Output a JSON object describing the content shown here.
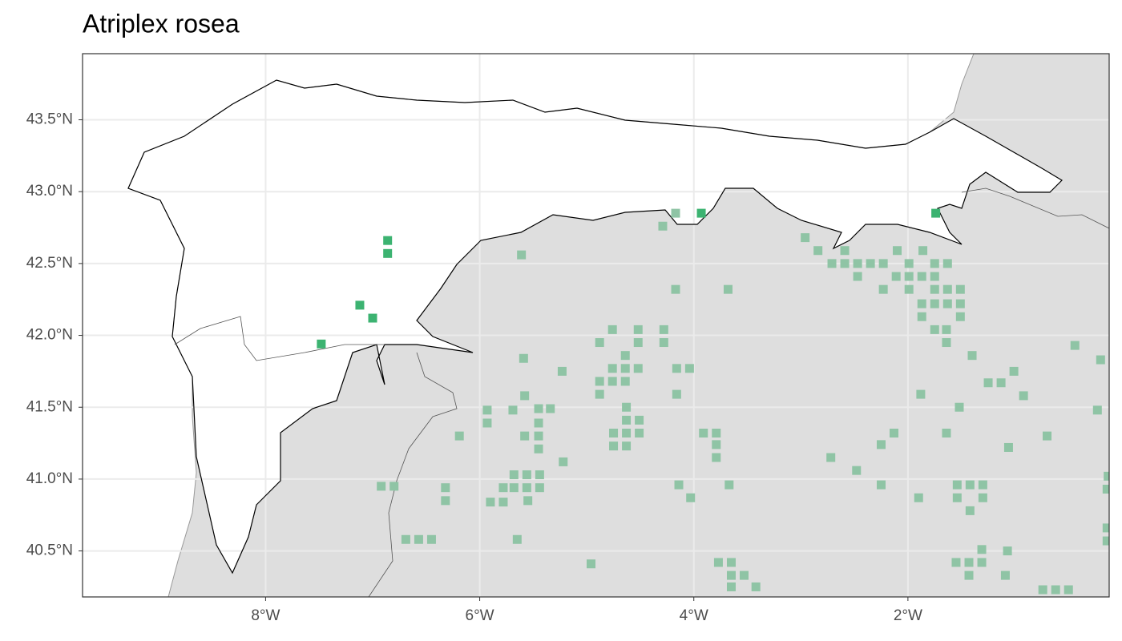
{
  "chart_data": {
    "type": "map",
    "title": "Atriplex rosea",
    "xlim": [
      -9.71,
      -0.12
    ],
    "ylim": [
      40.18,
      43.96
    ],
    "grid": true,
    "xticks": [
      {
        "value": -8,
        "label": "8°W"
      },
      {
        "value": -6,
        "label": "6°W"
      },
      {
        "value": -4,
        "label": "4°W"
      },
      {
        "value": -2,
        "label": "2°W"
      }
    ],
    "yticks": [
      {
        "value": 40.5,
        "label": "40.5°N"
      },
      {
        "value": 41,
        "label": "41.0°N"
      },
      {
        "value": 41.5,
        "label": "41.5°N"
      },
      {
        "value": 42,
        "label": "42.0°N"
      },
      {
        "value": 42.5,
        "label": "42.5°N"
      },
      {
        "value": 43,
        "label": "43.0°N"
      },
      {
        "value": 43.5,
        "label": "43.5°N"
      }
    ],
    "series": [
      {
        "color": "#8fc4a5",
        "x": [
          -4.17,
          -4.29,
          -2.96,
          -2.84,
          -2.59,
          -5.61,
          -2.71,
          -2.59,
          -2.47,
          -2.35,
          -2.23,
          -2.1,
          -1.99,
          -1.86,
          -1.75,
          -1.63,
          -2.47,
          -2.11,
          -1.99,
          -1.87,
          -1.75,
          -2.23,
          -1.99,
          -1.75,
          -1.63,
          -1.51,
          -4.17,
          -3.68,
          -1.87,
          -1.75,
          -1.63,
          -1.51,
          -1.87,
          -1.51,
          -4.76,
          -4.52,
          -4.28,
          -1.75,
          -1.64,
          -4.88,
          -4.52,
          -4.28,
          -1.64,
          -5.59,
          -4.64,
          -1.4,
          -4.76,
          -4.64,
          -4.52,
          -4.16,
          -4.04,
          -5.23,
          -4.88,
          -4.76,
          -4.64,
          -1.25,
          -1.01,
          -1.13,
          -0.44,
          -0.2,
          -4.88,
          -5.58,
          -4.16,
          -1.88,
          -0.92,
          -5.93,
          -5.69,
          -5.45,
          -5.34,
          -4.63,
          -1.52,
          -0.23,
          -5.93,
          -5.45,
          -4.63,
          -4.51,
          -5.58,
          -5.45,
          -4.75,
          -4.63,
          -4.51,
          -3.91,
          -3.79,
          -2.13,
          -1.64,
          -0.7,
          -6.19,
          -5.45,
          -4.75,
          -4.63,
          -3.79,
          -2.25,
          -1.06,
          -5.22,
          -3.79,
          -2.72,
          -2.48,
          -0.13,
          -6.92,
          -6.8,
          -6.32,
          -5.78,
          -5.68,
          -5.56,
          -5.44,
          -5.68,
          -5.56,
          -5.44,
          -4.14,
          -3.67,
          -2.25,
          -1.54,
          -1.42,
          -1.3,
          -0.14,
          -6.32,
          -5.9,
          -5.78,
          -5.55,
          -4.03,
          -1.9,
          -1.54,
          -1.3,
          -1.42,
          -6.69,
          -6.57,
          -6.45,
          -5.65,
          -0.14,
          -0.14,
          -4.96,
          -3.77,
          -3.65,
          -1.55,
          -1.43,
          -1.31,
          -1.31,
          -1.07,
          -3.65,
          -3.53,
          -1.43,
          -1.09,
          -3.65,
          -3.42,
          -0.74,
          -0.62,
          -0.5
        ],
        "y": [
          42.85,
          42.76,
          42.68,
          42.59,
          42.59,
          42.56,
          42.5,
          42.5,
          42.5,
          42.5,
          42.5,
          42.59,
          42.5,
          42.59,
          42.5,
          42.5,
          42.41,
          42.41,
          42.41,
          42.41,
          42.41,
          42.32,
          42.32,
          42.32,
          42.32,
          42.32,
          42.32,
          42.32,
          42.22,
          42.22,
          42.22,
          42.22,
          42.13,
          42.13,
          42.04,
          42.04,
          42.04,
          42.04,
          42.04,
          41.95,
          41.95,
          41.95,
          41.95,
          41.84,
          41.86,
          41.86,
          41.77,
          41.77,
          41.77,
          41.77,
          41.77,
          41.75,
          41.68,
          41.68,
          41.68,
          41.67,
          41.75,
          41.67,
          41.93,
          41.83,
          41.59,
          41.58,
          41.59,
          41.59,
          41.58,
          41.48,
          41.48,
          41.49,
          41.49,
          41.5,
          41.5,
          41.48,
          41.39,
          41.39,
          41.41,
          41.41,
          41.3,
          41.3,
          41.32,
          41.32,
          41.32,
          41.32,
          41.32,
          41.32,
          41.32,
          41.3,
          41.3,
          41.21,
          41.23,
          41.23,
          41.24,
          41.24,
          41.22,
          41.12,
          41.15,
          41.15,
          41.06,
          41.02,
          40.95,
          40.95,
          40.94,
          40.94,
          41.03,
          41.03,
          41.03,
          40.94,
          40.94,
          40.94,
          40.96,
          40.96,
          40.96,
          40.96,
          40.96,
          40.96,
          40.93,
          40.85,
          40.84,
          40.84,
          40.85,
          40.87,
          40.87,
          40.87,
          40.87,
          40.78,
          40.58,
          40.58,
          40.58,
          40.58,
          40.66,
          40.57,
          40.41,
          40.42,
          40.42,
          40.42,
          40.42,
          40.42,
          40.51,
          40.5,
          40.33,
          40.33,
          40.33,
          40.33,
          40.25,
          40.25,
          40.23,
          40.23,
          40.23
        ]
      },
      {
        "color": "#3cb371",
        "x": [
          -6.86,
          -6.86,
          -7.12,
          -7.0,
          -7.48,
          -3.93,
          -1.74
        ],
        "y": [
          42.66,
          42.57,
          42.21,
          42.12,
          41.94,
          42.85,
          42.85
        ]
      }
    ]
  }
}
